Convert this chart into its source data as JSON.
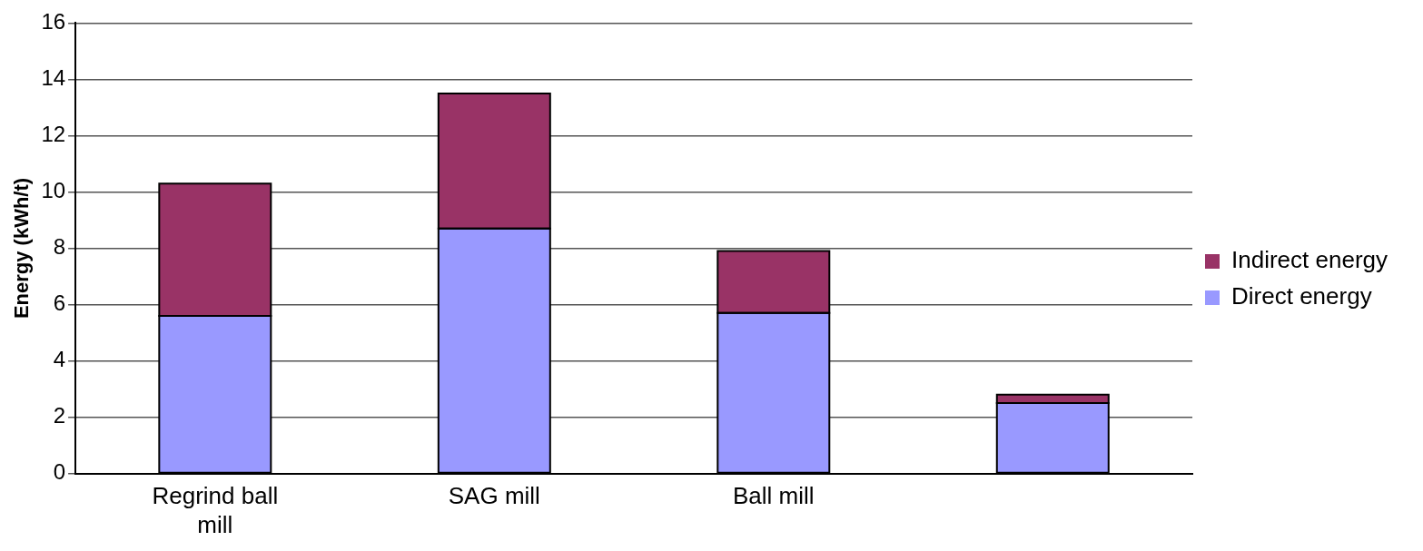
{
  "chart_data": {
    "type": "bar",
    "ylabel": "Energy (kWh/t)",
    "categories": [
      "Regrind ball mill",
      "SAG mill",
      "Ball mill",
      null
    ],
    "stacked": true,
    "series": [
      {
        "name": "Direct energy",
        "color": "#9999ff",
        "values": [
          5.6,
          8.7,
          5.7,
          2.5
        ]
      },
      {
        "name": "Indirect energy",
        "color": "#993366",
        "values": [
          4.7,
          4.8,
          2.2,
          0.3
        ]
      }
    ],
    "ylim": [
      0,
      16
    ],
    "yticks": [
      0,
      2,
      4,
      6,
      8,
      10,
      12,
      14,
      16
    ],
    "grid": "y",
    "legend": "right"
  }
}
